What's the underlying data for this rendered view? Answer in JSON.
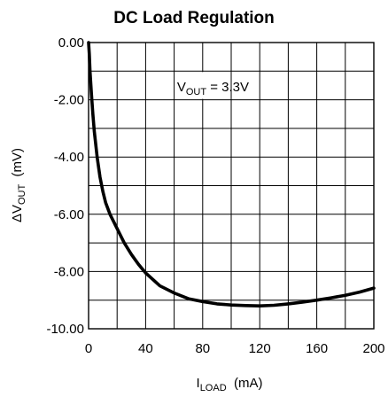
{
  "chart_data": {
    "type": "line",
    "title": "DC Load Regulation",
    "xlabel": {
      "main": "I",
      "sub": "LOAD",
      "unit": "(mA)"
    },
    "ylabel": {
      "prefix": "ΔV",
      "sub": "OUT",
      "unit": "(mV)"
    },
    "xlim": [
      0,
      200
    ],
    "ylim": [
      -10,
      0
    ],
    "x_ticks": [
      "0",
      "40",
      "80",
      "120",
      "160",
      "200"
    ],
    "x_tick_values": [
      0,
      40,
      80,
      120,
      160,
      200
    ],
    "y_ticks": [
      "0.00",
      "-2.00",
      "-4.00",
      "-6.00",
      "-8.00",
      "-10.00"
    ],
    "y_tick_values": [
      0,
      -2,
      -4,
      -6,
      -8,
      -10
    ],
    "grid": true,
    "x_grid_step": 20,
    "y_grid_step": 1,
    "annotation": {
      "main": "V",
      "sub": "OUT",
      "rest": " = 3.3V"
    },
    "series": [
      {
        "x": [
          0,
          0.5,
          1,
          2,
          3,
          4,
          6,
          8,
          10,
          12,
          15,
          18,
          20,
          25,
          30,
          35,
          40,
          50,
          60,
          70,
          80,
          90,
          100,
          110,
          120,
          130,
          140,
          150,
          160,
          170,
          180,
          190,
          200
        ],
        "y": [
          0,
          -0.4,
          -1.0,
          -1.8,
          -2.5,
          -3.1,
          -4.0,
          -4.7,
          -5.2,
          -5.6,
          -6.0,
          -6.3,
          -6.5,
          -7.0,
          -7.4,
          -7.75,
          -8.05,
          -8.5,
          -8.75,
          -8.95,
          -9.05,
          -9.13,
          -9.17,
          -9.19,
          -9.2,
          -9.18,
          -9.13,
          -9.07,
          -9.0,
          -8.92,
          -8.83,
          -8.72,
          -8.58
        ]
      }
    ]
  }
}
